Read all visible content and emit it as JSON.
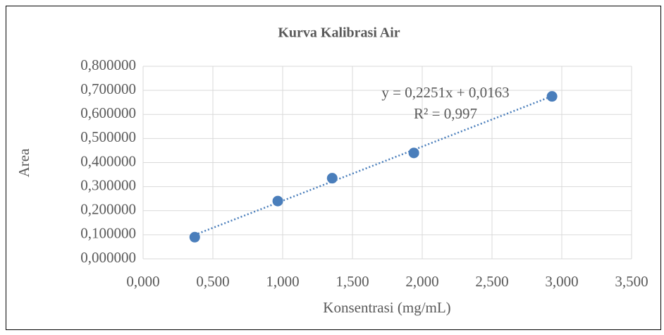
{
  "chart_data": {
    "type": "scatter",
    "title": "Kurva Kalibrasi Air",
    "x_label": "Konsentrasi (mg/mL)",
    "y_label": "Area",
    "series": [
      {
        "name": "Area",
        "color": "#4a7ebb",
        "x": [
          0.37,
          0.965,
          1.355,
          1.94,
          2.93
        ],
        "values": [
          0.09,
          0.24,
          0.335,
          0.44,
          0.675
        ]
      }
    ],
    "trendline": {
      "slope": 0.2251,
      "intercept": 0.0163,
      "color": "#4a7ebb",
      "equation": "y = 0,2251x + 0,0163",
      "r2": "R² = 0,997"
    },
    "xlim": [
      0,
      3.5
    ],
    "xticks": [
      {
        "value": 0,
        "label": "0,000"
      },
      {
        "value": 0.5,
        "label": "0,500"
      },
      {
        "value": 1,
        "label": "1,000"
      },
      {
        "value": 1.5,
        "label": "1,500"
      },
      {
        "value": 2,
        "label": "2,000"
      },
      {
        "value": 2.5,
        "label": "2,500"
      },
      {
        "value": 3,
        "label": "3,000"
      },
      {
        "value": 3.5,
        "label": "3,500"
      }
    ],
    "ylim": [
      0,
      0.8
    ],
    "yticks": [
      {
        "value": 0,
        "label": "0,000000"
      },
      {
        "value": 0.1,
        "label": "0,100000"
      },
      {
        "value": 0.2,
        "label": "0,200000"
      },
      {
        "value": 0.3,
        "label": "0,300000"
      },
      {
        "value": 0.4,
        "label": "0,400000"
      },
      {
        "value": 0.5,
        "label": "0,500000"
      },
      {
        "value": 0.6,
        "label": "0,600000"
      },
      {
        "value": 0.7,
        "label": "0,700000"
      },
      {
        "value": 0.8,
        "label": "0,800000"
      }
    ],
    "grid": true
  }
}
